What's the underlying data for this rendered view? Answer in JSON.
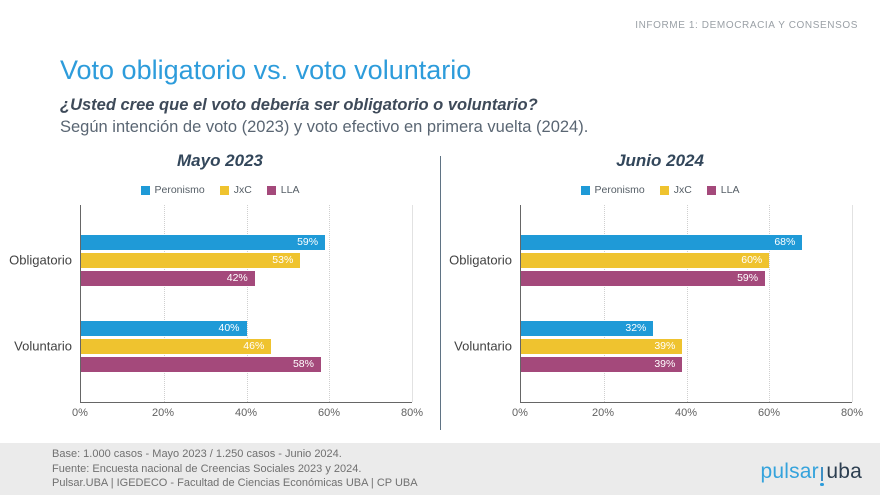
{
  "header": {
    "report_label": "INFORME 1: DEMOCRACIA Y CONSENSOS"
  },
  "title": "Voto obligatorio vs. voto voluntario",
  "subtitle_question": "¿Usted cree que el voto debería ser obligatorio o voluntario?",
  "subtitle_detail": "Según intención de voto (2023) y voto efectivo en primera vuelta (2024).",
  "colors": {
    "title_blue": "#2d9cdb",
    "peronismo": "#1f9ad7",
    "jxc": "#efc32f",
    "lla": "#a4497b"
  },
  "chart_data": [
    {
      "type": "bar",
      "orientation": "horizontal",
      "title": "Mayo 2023",
      "categories": [
        "Obligatorio",
        "Voluntario"
      ],
      "series": [
        {
          "name": "Peronismo",
          "color": "#1f9ad7",
          "values": [
            59,
            40
          ]
        },
        {
          "name": "JxC",
          "color": "#efc32f",
          "values": [
            53,
            46
          ]
        },
        {
          "name": "LLA",
          "color": "#a4497b",
          "values": [
            42,
            58
          ]
        }
      ],
      "value_suffix": "%",
      "xlim": [
        0,
        80
      ],
      "x_ticks": [
        "0%",
        "20%",
        "40%",
        "60%",
        "80%"
      ],
      "grid": true,
      "legend_position": "top"
    },
    {
      "type": "bar",
      "orientation": "horizontal",
      "title": "Junio 2024",
      "categories": [
        "Obligatorio",
        "Voluntario"
      ],
      "series": [
        {
          "name": "Peronismo",
          "color": "#1f9ad7",
          "values": [
            68,
            32
          ]
        },
        {
          "name": "JxC",
          "color": "#efc32f",
          "values": [
            60,
            39
          ]
        },
        {
          "name": "LLA",
          "color": "#a4497b",
          "values": [
            59,
            39
          ]
        }
      ],
      "value_suffix": "%",
      "xlim": [
        0,
        80
      ],
      "x_ticks": [
        "0%",
        "20%",
        "40%",
        "60%",
        "80%"
      ],
      "grid": true,
      "legend_position": "top"
    }
  ],
  "footer": {
    "line1": "Base: 1.000 casos - Mayo 2023 / 1.250 casos - Junio 2024.",
    "line2": "Fuente: Encuesta nacional de Creencias Sociales 2023 y 2024.",
    "line3": "Pulsar.UBA | IGEDECO - Facultad de Ciencias Económicas UBA | CP UBA",
    "logo": {
      "part1": "pulsar",
      "part2": "uba"
    }
  }
}
